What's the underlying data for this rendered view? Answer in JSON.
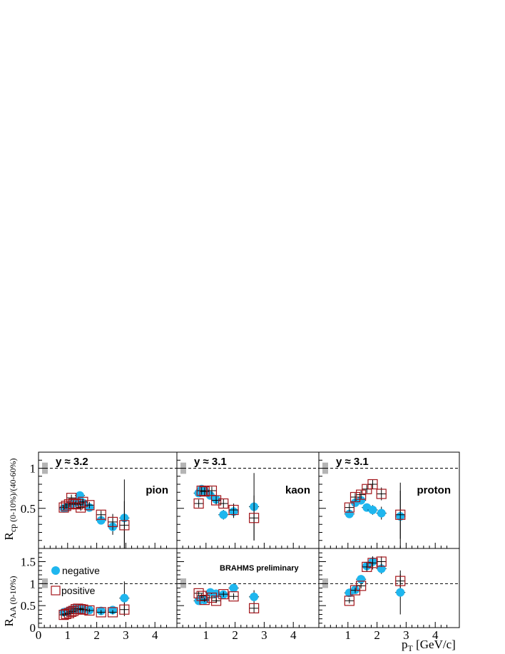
{
  "figure": {
    "y_label_top_main": "R",
    "y_label_top_sub": "cp (0-10%)/(40-60%)",
    "y_label_bottom_main": "R",
    "y_label_bottom_sub": "AA (0-10%)",
    "x_label_main": "p",
    "x_label_sub": "T",
    "x_label_unit": " [GeV/c]",
    "preliminary": "BRAHMS preliminary",
    "legend": {
      "negative": "negative",
      "positive": "positive"
    },
    "colors": {
      "negative": "#1fb6ee",
      "positive": "#a3151a",
      "band": "#b4b4b4"
    }
  },
  "chart_data": [
    {
      "type": "scatter",
      "panel": "top-left",
      "ylabel": "R_cp (0-10%)/(40-60%)",
      "xlim": [
        0,
        4.4
      ],
      "ylim": [
        0,
        1.2
      ],
      "yticks": [
        0.5,
        1
      ],
      "reference_line": 1,
      "rapidity": "y ≈ 3.2",
      "particle": "pion",
      "series": [
        {
          "name": "negative",
          "x": [
            0.87,
            0.95,
            1.02,
            1.1,
            1.18,
            1.26,
            1.34,
            1.42,
            1.52,
            1.75,
            2.15,
            2.55,
            2.95
          ],
          "y": [
            0.5,
            0.51,
            0.53,
            0.55,
            0.56,
            0.57,
            0.58,
            0.66,
            0.57,
            0.51,
            0.35,
            0.27,
            0.38
          ],
          "yerr": [
            0.03,
            0.03,
            0.03,
            0.03,
            0.03,
            0.03,
            0.03,
            0.05,
            0.04,
            0.04,
            0.05,
            0.1,
            0.48
          ]
        },
        {
          "name": "positive",
          "x": [
            0.87,
            0.95,
            1.05,
            1.13,
            1.2,
            1.28,
            1.36,
            1.45,
            1.53,
            1.75,
            2.15,
            2.55,
            2.95
          ],
          "y": [
            0.51,
            0.53,
            0.55,
            0.63,
            0.56,
            0.56,
            0.55,
            0.51,
            0.58,
            0.54,
            0.42,
            0.33,
            0.29
          ],
          "yerr": [
            0.03,
            0.03,
            0.03,
            0.04,
            0.03,
            0.03,
            0.03,
            0.04,
            0.04,
            0.04,
            0.05,
            0.1,
            0.3
          ]
        }
      ]
    },
    {
      "type": "scatter",
      "panel": "top-middle",
      "xlim": [
        0,
        4.4
      ],
      "ylim": [
        0,
        1.2
      ],
      "yticks": [
        0.5,
        1
      ],
      "reference_line": 1,
      "rapidity": "y ≈ 3.1",
      "particle": "kaon",
      "series": [
        {
          "name": "negative",
          "x": [
            0.75,
            0.85,
            0.95,
            1.15,
            1.35,
            1.6,
            1.95,
            2.65
          ],
          "y": [
            0.69,
            0.74,
            0.72,
            0.66,
            0.61,
            0.42,
            0.46,
            0.52
          ],
          "yerr": [
            0.05,
            0.05,
            0.05,
            0.05,
            0.05,
            0.06,
            0.08,
            0.42
          ]
        },
        {
          "name": "positive",
          "x": [
            0.75,
            0.85,
            0.95,
            1.2,
            1.35,
            1.6,
            1.95,
            2.65
          ],
          "y": [
            0.56,
            0.72,
            0.71,
            0.72,
            0.6,
            0.56,
            0.48,
            0.38
          ],
          "yerr": [
            0.05,
            0.05,
            0.05,
            0.05,
            0.05,
            0.06,
            0.08,
            0.28
          ]
        }
      ]
    },
    {
      "type": "scatter",
      "panel": "top-right",
      "xlim": [
        0,
        4.4
      ],
      "ylim": [
        0,
        1.2
      ],
      "yticks": [
        0.5,
        1
      ],
      "reference_line": 1,
      "rapidity": "y ≈ 3.1",
      "particle": "proton",
      "series": [
        {
          "name": "negative",
          "x": [
            1.05,
            1.25,
            1.45,
            1.65,
            1.85,
            2.15,
            2.8
          ],
          "y": [
            0.43,
            0.57,
            0.6,
            0.51,
            0.48,
            0.44,
            0.4
          ],
          "yerr": [
            0.05,
            0.05,
            0.05,
            0.05,
            0.06,
            0.08,
            0.42
          ]
        },
        {
          "name": "positive",
          "x": [
            1.05,
            1.25,
            1.45,
            1.65,
            1.85,
            2.15,
            2.8
          ],
          "y": [
            0.51,
            0.64,
            0.67,
            0.74,
            0.8,
            0.68,
            0.42
          ],
          "yerr": [
            0.05,
            0.05,
            0.05,
            0.05,
            0.06,
            0.08,
            0.3
          ]
        }
      ]
    },
    {
      "type": "scatter",
      "panel": "bottom-left",
      "ylabel": "R_AA (0-10%)",
      "xlabel": "p_T [GeV/c]",
      "xlim": [
        0,
        4.4
      ],
      "ylim": [
        0,
        1.8
      ],
      "xticks": [
        0,
        1,
        2,
        3,
        4
      ],
      "yticks": [
        0,
        0.5,
        1,
        1.5
      ],
      "reference_line": 1,
      "series": [
        {
          "name": "negative",
          "x": [
            0.87,
            0.95,
            1.02,
            1.1,
            1.18,
            1.26,
            1.34,
            1.42,
            1.52,
            1.75,
            2.15,
            2.55,
            2.95
          ],
          "y": [
            0.35,
            0.36,
            0.37,
            0.4,
            0.41,
            0.42,
            0.42,
            0.43,
            0.42,
            0.4,
            0.38,
            0.4,
            0.67
          ],
          "yerr": [
            0.03,
            0.03,
            0.03,
            0.03,
            0.03,
            0.03,
            0.03,
            0.04,
            0.04,
            0.04,
            0.05,
            0.05,
            0.38
          ]
        },
        {
          "name": "positive",
          "x": [
            0.87,
            0.95,
            1.05,
            1.13,
            1.2,
            1.28,
            1.36,
            1.45,
            1.53,
            1.75,
            2.15,
            2.55,
            2.95
          ],
          "y": [
            0.29,
            0.31,
            0.33,
            0.36,
            0.38,
            0.42,
            0.43,
            0.42,
            0.41,
            0.39,
            0.35,
            0.35,
            0.41
          ],
          "yerr": [
            0.03,
            0.03,
            0.03,
            0.03,
            0.03,
            0.03,
            0.03,
            0.04,
            0.04,
            0.04,
            0.05,
            0.05,
            0.15
          ]
        }
      ]
    },
    {
      "type": "scatter",
      "panel": "bottom-middle",
      "xlabel": "p_T [GeV/c]",
      "xlim": [
        0,
        4.4
      ],
      "ylim": [
        0,
        1.8
      ],
      "xticks": [
        1,
        2,
        3,
        4
      ],
      "reference_line": 1,
      "series": [
        {
          "name": "negative",
          "x": [
            0.75,
            0.85,
            0.95,
            1.15,
            1.35,
            1.6,
            1.95,
            2.65
          ],
          "y": [
            0.61,
            0.64,
            0.63,
            0.8,
            0.77,
            0.75,
            0.9,
            0.7
          ],
          "yerr": [
            0.05,
            0.05,
            0.05,
            0.05,
            0.05,
            0.06,
            0.07,
            0.15
          ]
        },
        {
          "name": "positive",
          "x": [
            0.75,
            0.85,
            0.95,
            1.2,
            1.35,
            1.6,
            1.95,
            2.65
          ],
          "y": [
            0.78,
            0.72,
            0.63,
            0.68,
            0.61,
            0.76,
            0.71,
            0.44
          ],
          "yerr": [
            0.05,
            0.05,
            0.05,
            0.05,
            0.05,
            0.06,
            0.07,
            0.1
          ]
        }
      ]
    },
    {
      "type": "scatter",
      "panel": "bottom-right",
      "xlabel": "p_T [GeV/c]",
      "xlim": [
        0,
        4.4
      ],
      "ylim": [
        0,
        1.8
      ],
      "xticks": [
        1,
        2,
        3,
        4
      ],
      "reference_line": 1,
      "series": [
        {
          "name": "negative",
          "x": [
            1.05,
            1.25,
            1.45,
            1.65,
            1.85,
            2.15,
            2.8
          ],
          "y": [
            0.79,
            0.86,
            1.1,
            1.4,
            1.5,
            1.34,
            0.8
          ],
          "yerr": [
            0.06,
            0.06,
            0.06,
            0.08,
            0.1,
            0.12,
            0.5
          ]
        },
        {
          "name": "positive",
          "x": [
            1.05,
            1.25,
            1.45,
            1.65,
            1.85,
            2.15,
            2.8
          ],
          "y": [
            0.61,
            0.85,
            0.95,
            1.38,
            1.47,
            1.5,
            1.06
          ],
          "yerr": [
            0.06,
            0.06,
            0.06,
            0.1,
            0.15,
            0.12,
            0.15
          ]
        }
      ]
    }
  ]
}
